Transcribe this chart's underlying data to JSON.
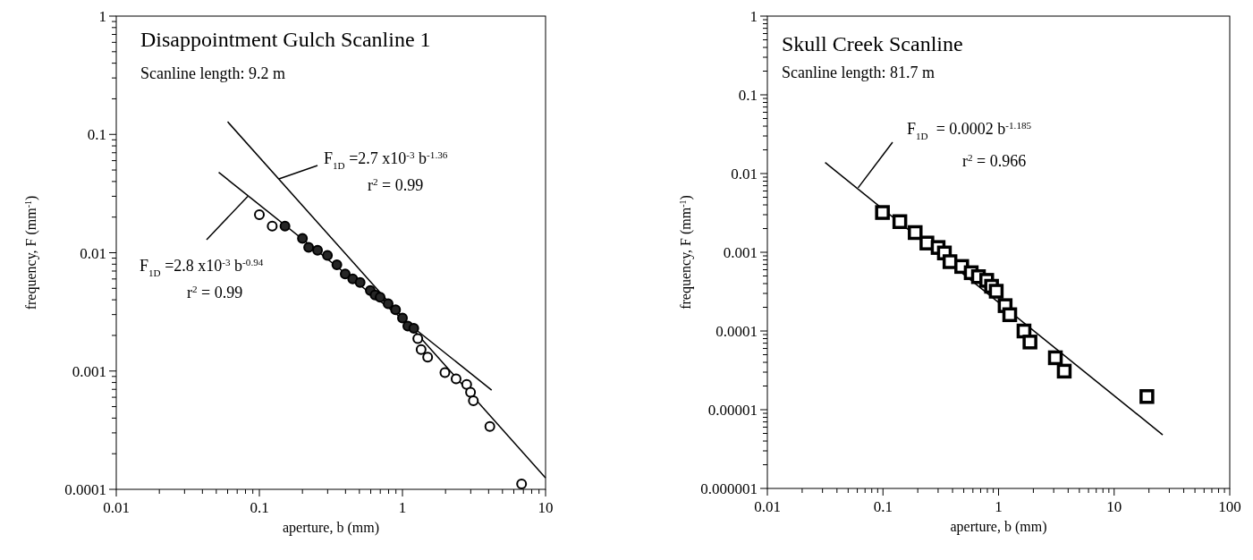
{
  "chart_data": [
    {
      "type": "scatter",
      "title": "Disappointment Gulch Scanline 1",
      "subtitle": "Scanline length: 9.2 m",
      "xlabel": "aperture, b (mm)",
      "ylabel": "frequency, F (mm$^{-1}$)",
      "log": "xy",
      "annotations": [
        {
          "text": "F$_{1D}$ =2.7 x10$^{-3}$ b$^{-1.36}$",
          "x": 0.137,
          "y": 0.042
        },
        "r$^{2}$ = 0.99",
        {
          "text": "F$_{1D}$ =2.8 x10$^{-3}$ b$^{-0.94}$",
          "x": 0.083,
          "y": 0.03
        },
        "r$^{2}$ = 0.99"
      ],
      "xlim": [
        0.01,
        10
      ],
      "ylim": [
        0.0001,
        1
      ],
      "xticks": [
        0.01,
        {
          "value": 0.02,
          "label": null
        },
        {
          "value": 0.03,
          "label": null
        },
        {
          "value": 0.04,
          "label": null
        },
        {
          "value": 0.05,
          "label": null
        },
        {
          "value": 0.06,
          "label": null
        },
        {
          "value": 0.07,
          "label": null
        },
        {
          "value": 0.08,
          "label": null
        },
        {
          "value": 0.09,
          "label": null
        },
        0.1,
        {
          "value": 0.2,
          "label": null
        },
        {
          "value": 0.3,
          "label": null
        },
        {
          "value": 0.4,
          "label": null
        },
        {
          "value": 0.5,
          "label": null
        },
        {
          "value": 0.6,
          "label": null
        },
        {
          "value": 0.7,
          "label": null
        },
        {
          "value": 0.8,
          "label": null
        },
        {
          "value": 0.9,
          "label": null
        },
        1,
        {
          "value": 2,
          "label": null
        },
        {
          "value": 3,
          "label": null
        },
        {
          "value": 4,
          "label": null
        },
        {
          "value": 5,
          "label": null
        },
        {
          "value": 6,
          "label": null
        },
        {
          "value": 7,
          "label": null
        },
        {
          "value": 8,
          "label": null
        },
        {
          "value": 9,
          "label": null
        },
        10
      ],
      "yticks": [
        0.0001,
        {
          "value": 0.0002,
          "label": null
        },
        {
          "value": 0.0003,
          "label": null
        },
        {
          "value": 0.0004,
          "label": null
        },
        {
          "value": 0.0005,
          "label": null
        },
        {
          "value": 0.0006,
          "label": null
        },
        {
          "value": 0.0007,
          "label": null
        },
        {
          "value": 0.0008,
          "label": null
        },
        {
          "value": 0.0009,
          "label": null
        },
        0.001,
        {
          "value": 0.002,
          "label": null
        },
        {
          "value": 0.003,
          "label": null
        },
        {
          "value": 0.004,
          "label": null
        },
        {
          "value": 0.005,
          "label": null
        },
        {
          "value": 0.006,
          "label": null
        },
        {
          "value": 0.007,
          "label": null
        },
        {
          "value": 0.008,
          "label": null
        },
        {
          "value": 0.009,
          "label": null
        },
        0.01,
        {
          "value": 0.02,
          "label": null
        },
        {
          "value": 0.03,
          "label": null
        },
        {
          "value": 0.04,
          "label": null
        },
        {
          "value": 0.05,
          "label": null
        },
        {
          "value": 0.06,
          "label": null
        },
        {
          "value": 0.07,
          "label": null
        },
        {
          "value": 0.08,
          "label": null
        },
        {
          "value": 0.09,
          "label": null
        },
        0.1,
        {
          "value": 0.2,
          "label": null
        },
        {
          "value": 0.3,
          "label": null
        },
        {
          "value": 0.4,
          "label": null
        },
        {
          "value": 0.5,
          "label": null
        },
        {
          "value": 0.6,
          "label": null
        },
        {
          "value": 0.7,
          "label": null
        },
        {
          "value": 0.8,
          "label": null
        },
        {
          "value": 0.9,
          "label": null
        },
        1
      ],
      "series": [
        {
          "marker": "circle",
          "color": "#ffffff",
          "x": [
            0.1,
            0.123,
            1.28,
            1.35,
            1.5,
            1.98,
            2.37,
            2.81,
            2.99,
            3.13,
            4.08,
            6.8
          ],
          "values": [
            0.021,
            0.0168,
            0.00188,
            0.00152,
            0.00131,
            0.00097,
            0.00086,
            0.00077,
            0.00066,
            0.00056,
            0.00034,
            0.000111
          ]
        },
        {
          "marker": "circle",
          "color": "#262626",
          "x": [
            0.151,
            0.2,
            0.221,
            0.255,
            0.299,
            0.348,
            0.398,
            0.449,
            0.506,
            0.596,
            0.643,
            0.698,
            0.794,
            0.895,
            1.0,
            1.09,
            1.2
          ],
          "values": [
            0.0168,
            0.0132,
            0.0111,
            0.0105,
            0.0095,
            0.0079,
            0.0066,
            0.006,
            0.0056,
            0.0048,
            0.0044,
            0.0042,
            0.0037,
            0.0033,
            0.0028,
            0.0024,
            0.0023
          ]
        },
        {
          "type": "line",
          "color": "#000000",
          "x": [
            0.06,
            10
          ],
          "values": [
            0.128,
            0.000125
          ]
        },
        {
          "type": "line",
          "color": "#000000",
          "x": [
            0.052,
            4.2
          ],
          "values": [
            0.0478,
            0.00069
          ]
        }
      ]
    },
    {
      "type": "scatter",
      "title": "Skull Creek Scanline",
      "subtitle": "Scanline length: 81.7 m",
      "xlabel": "aperture, b (mm)",
      "ylabel": "frequency, F (mm$^{-1}$)",
      "log": "xy",
      "annotations": [
        {
          "text": "F$_{1D}$  = 0.0002 b$^{-1.185}$",
          "x": 0.061,
          "y": 0.0066
        },
        "r$^{2}$ = 0.966"
      ],
      "xlim": [
        0.01,
        100
      ],
      "ylim": [
        1e-06,
        1
      ],
      "xticks": [
        0.01,
        {
          "value": 0.02,
          "label": null
        },
        {
          "value": 0.03,
          "label": null
        },
        {
          "value": 0.04,
          "label": null
        },
        {
          "value": 0.05,
          "label": null
        },
        {
          "value": 0.06,
          "label": null
        },
        {
          "value": 0.07,
          "label": null
        },
        {
          "value": 0.08,
          "label": null
        },
        {
          "value": 0.09,
          "label": null
        },
        0.1,
        {
          "value": 0.2,
          "label": null
        },
        {
          "value": 0.3,
          "label": null
        },
        {
          "value": 0.4,
          "label": null
        },
        {
          "value": 0.5,
          "label": null
        },
        {
          "value": 0.6,
          "label": null
        },
        {
          "value": 0.7,
          "label": null
        },
        {
          "value": 0.8,
          "label": null
        },
        {
          "value": 0.9,
          "label": null
        },
        1,
        {
          "value": 2,
          "label": null
        },
        {
          "value": 3,
          "label": null
        },
        {
          "value": 4,
          "label": null
        },
        {
          "value": 5,
          "label": null
        },
        {
          "value": 6,
          "label": null
        },
        {
          "value": 7,
          "label": null
        },
        {
          "value": 8,
          "label": null
        },
        {
          "value": 9,
          "label": null
        },
        10,
        {
          "value": 20,
          "label": null
        },
        {
          "value": 30,
          "label": null
        },
        {
          "value": 40,
          "label": null
        },
        {
          "value": 50,
          "label": null
        },
        {
          "value": 60,
          "label": null
        },
        {
          "value": 70,
          "label": null
        },
        {
          "value": 80,
          "label": null
        },
        {
          "value": 90,
          "label": null
        },
        100
      ],
      "yticks": [
        {
          "value": 1e-06,
          "label": "0.000001"
        },
        {
          "value": 2e-06,
          "label": null
        },
        {
          "value": 3e-06,
          "label": null
        },
        {
          "value": 4e-06,
          "label": null
        },
        {
          "value": 5e-06,
          "label": null
        },
        {
          "value": 6e-06,
          "label": null
        },
        {
          "value": 7e-06,
          "label": null
        },
        {
          "value": 8e-06,
          "label": null
        },
        {
          "value": 9e-06,
          "label": null
        },
        {
          "value": 1e-05,
          "label": "0.00001"
        },
        {
          "value": 2e-05,
          "label": null
        },
        {
          "value": 3e-05,
          "label": null
        },
        {
          "value": 4e-05,
          "label": null
        },
        {
          "value": 5e-05,
          "label": null
        },
        {
          "value": 6e-05,
          "label": null
        },
        {
          "value": 7e-05,
          "label": null
        },
        {
          "value": 8e-05,
          "label": null
        },
        {
          "value": 9e-05,
          "label": null
        },
        0.0001,
        {
          "value": 0.0002,
          "label": null
        },
        {
          "value": 0.0003,
          "label": null
        },
        {
          "value": 0.0004,
          "label": null
        },
        {
          "value": 0.0005,
          "label": null
        },
        {
          "value": 0.0006,
          "label": null
        },
        {
          "value": 0.0007,
          "label": null
        },
        {
          "value": 0.0008,
          "label": null
        },
        {
          "value": 0.0009,
          "label": null
        },
        0.001,
        {
          "value": 0.002,
          "label": null
        },
        {
          "value": 0.003,
          "label": null
        },
        {
          "value": 0.004,
          "label": null
        },
        {
          "value": 0.005,
          "label": null
        },
        {
          "value": 0.006,
          "label": null
        },
        {
          "value": 0.007,
          "label": null
        },
        {
          "value": 0.008,
          "label": null
        },
        {
          "value": 0.009,
          "label": null
        },
        0.01,
        {
          "value": 0.02,
          "label": null
        },
        {
          "value": 0.03,
          "label": null
        },
        {
          "value": 0.04,
          "label": null
        },
        {
          "value": 0.05,
          "label": null
        },
        {
          "value": 0.06,
          "label": null
        },
        {
          "value": 0.07,
          "label": null
        },
        {
          "value": 0.08,
          "label": null
        },
        {
          "value": 0.09,
          "label": null
        },
        0.1,
        {
          "value": 0.2,
          "label": null
        },
        {
          "value": 0.3,
          "label": null
        },
        {
          "value": 0.4,
          "label": null
        },
        {
          "value": 0.5,
          "label": null
        },
        {
          "value": 0.6,
          "label": null
        },
        {
          "value": 0.7,
          "label": null
        },
        {
          "value": 0.8,
          "label": null
        },
        {
          "value": 0.9,
          "label": null
        },
        1
      ],
      "series": [
        {
          "marker": "square",
          "color": "#ffffff",
          "x": [
            0.099,
            0.14,
            0.19,
            0.24,
            0.3,
            0.34,
            0.38,
            0.48,
            0.58,
            0.67,
            0.79,
            0.87,
            0.955,
            1.14,
            1.25,
            1.66,
            1.87,
            3.1,
            3.7,
            19.2
          ],
          "values": [
            0.0032,
            0.00245,
            0.00178,
            0.00131,
            0.00115,
            0.00098,
            0.00076,
            0.00066,
            0.00055,
            0.00049,
            0.00044,
            0.00037,
            0.00032,
            0.00021,
            0.000161,
            0.0001,
            7.24e-05,
            4.57e-05,
            3.09e-05,
            1.47e-05
          ]
        },
        {
          "type": "line",
          "color": "#000000",
          "x": [
            0.0316,
            26.3
          ],
          "values": [
            0.0138,
            4.8e-06
          ]
        }
      ]
    }
  ]
}
